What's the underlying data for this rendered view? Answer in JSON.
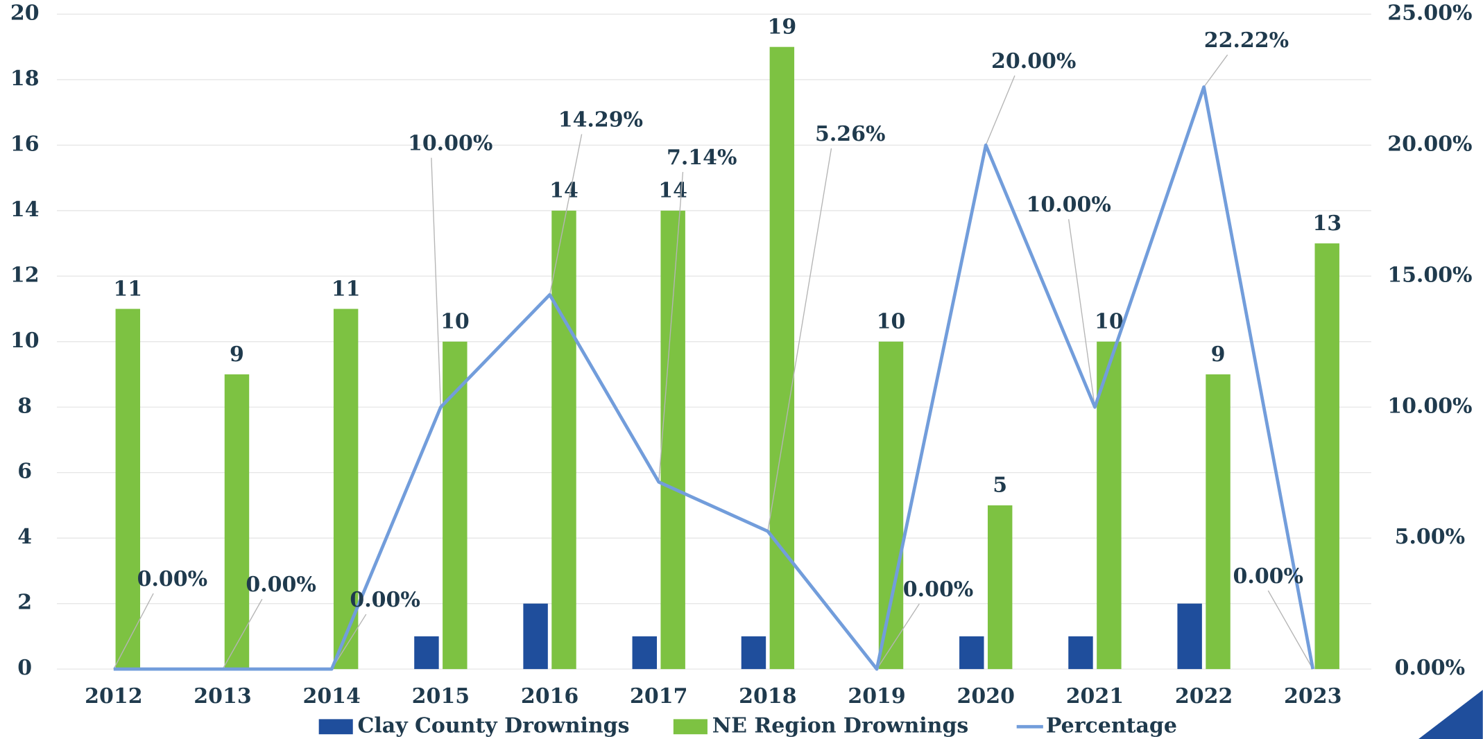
{
  "chart_data": {
    "type": "bar-line",
    "categories": [
      "2012",
      "2013",
      "2014",
      "2015",
      "2016",
      "2017",
      "2018",
      "2019",
      "2020",
      "2021",
      "2022",
      "2023"
    ],
    "series": [
      {
        "name": "Clay County Drownings",
        "color": "#1f4e9c",
        "type": "bar",
        "values": [
          0,
          0,
          0,
          1,
          2,
          1,
          1,
          0,
          1,
          1,
          2,
          0
        ]
      },
      {
        "name": "NE Region Drownings",
        "color": "#7dc242",
        "type": "bar",
        "values": [
          11,
          9,
          11,
          10,
          14,
          14,
          19,
          10,
          5,
          10,
          9,
          13
        ]
      },
      {
        "name": "Percentage",
        "color": "#729ddb",
        "type": "line",
        "axis": "y2",
        "values": [
          0,
          0,
          0,
          10,
          14.29,
          7.14,
          5.26,
          0,
          20,
          10,
          22.22,
          0
        ],
        "value_labels": [
          "0.00%",
          "0.00%",
          "0.00%",
          "10.00%",
          "14.29%",
          "7.14%",
          "5.26%",
          "0.00%",
          "20.00%",
          "10.00%",
          "22.22%",
          "0.00%"
        ]
      }
    ],
    "ylim": [
      0,
      20
    ],
    "yticks": [
      0,
      2,
      4,
      6,
      8,
      10,
      12,
      14,
      16,
      18,
      20
    ],
    "y2lim": [
      0,
      25
    ],
    "y2ticks": [
      {
        "value": 0,
        "label": "0.00%"
      },
      {
        "value": 5,
        "label": "5.00%"
      },
      {
        "value": 10,
        "label": "10.00%"
      },
      {
        "value": 15,
        "label": "15.00%"
      },
      {
        "value": 20,
        "label": "20.00%"
      },
      {
        "value": 25,
        "label": "25.00%"
      }
    ],
    "grid": true,
    "legend": "bottom"
  }
}
